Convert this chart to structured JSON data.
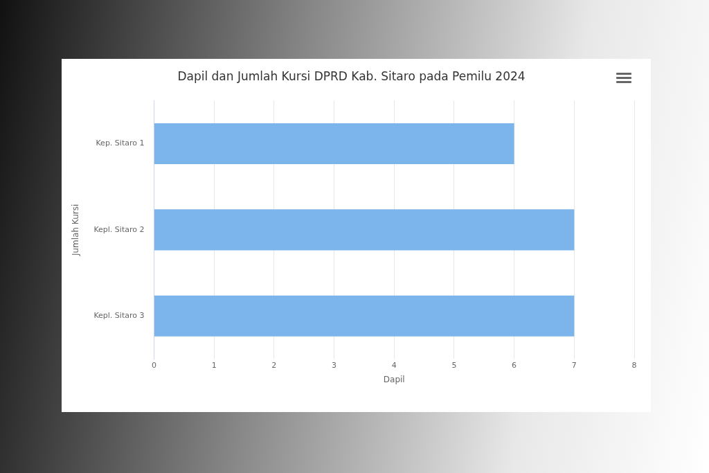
{
  "chart_data": {
    "type": "bar",
    "orientation": "horizontal",
    "title": "Dapil dan Jumlah Kursi DPRD Kab. Sitaro pada Pemilu 2024",
    "xlabel": "Dapil",
    "ylabel": "Jumlah Kursi",
    "categories": [
      "Kep. Sitaro 1",
      "Kepl. Sitaro 2",
      "Kepl. Sitaro 3"
    ],
    "series": [
      {
        "color": "#7cb5ec",
        "values": [
          6,
          7,
          7
        ]
      }
    ],
    "xlim": [
      0,
      8
    ],
    "xticks": [
      0,
      1,
      2,
      3,
      4,
      5,
      6,
      7,
      8
    ],
    "grid": "x",
    "legend": false
  }
}
